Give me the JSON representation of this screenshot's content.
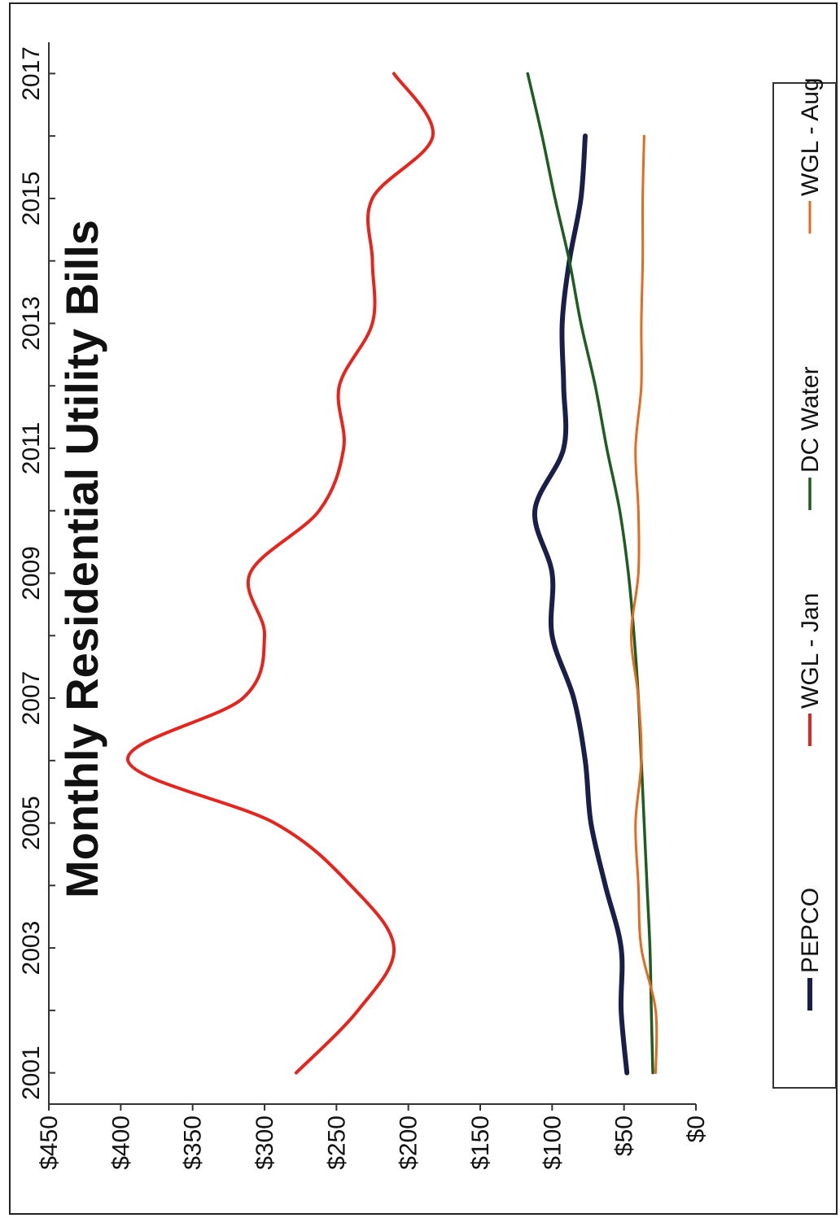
{
  "chart_data": {
    "type": "line",
    "title": "Monthly Residential Utility Bills",
    "xlabel": "",
    "ylabel": "",
    "x": [
      2001,
      2002,
      2003,
      2004,
      2005,
      2006,
      2007,
      2008,
      2009,
      2010,
      2011,
      2012,
      2013,
      2014,
      2015,
      2016,
      2017
    ],
    "x_tick_labels": [
      "2001",
      "2003",
      "2005",
      "2007",
      "2009",
      "2011",
      "2013",
      "2015",
      "2017"
    ],
    "xlim": [
      2000.5,
      2017.5
    ],
    "ylim": [
      0,
      450
    ],
    "y_tick_labels": [
      "$0",
      "$50",
      "$100",
      "$150",
      "$200",
      "$250",
      "$300",
      "$350",
      "$400",
      "$450"
    ],
    "series": [
      {
        "name": "PEPCO",
        "color": "#1a1f4a",
        "values": [
          48,
          52,
          52,
          63,
          73,
          77,
          85,
          100,
          100,
          112,
          92,
          92,
          93,
          88,
          80,
          77,
          null
        ]
      },
      {
        "name": "WGL - Jan",
        "color": "#e8231c",
        "values": [
          278,
          235,
          210,
          240,
          293,
          395,
          315,
          300,
          310,
          262,
          245,
          248,
          225,
          225,
          225,
          183,
          210
        ]
      },
      {
        "name": "DC Water",
        "color": "#1d5e20",
        "values": [
          30,
          31,
          32,
          34,
          36,
          38,
          40,
          43,
          47,
          53,
          62,
          70,
          80,
          88,
          98,
          107,
          117
        ]
      },
      {
        "name": "WGL - Aug",
        "color": "#e56a1e",
        "values": [
          28,
          28,
          38,
          40,
          42,
          38,
          40,
          45,
          40,
          40,
          42,
          38,
          38,
          37,
          37,
          36,
          null
        ]
      }
    ],
    "legend_position": "bottom",
    "grid": false
  }
}
